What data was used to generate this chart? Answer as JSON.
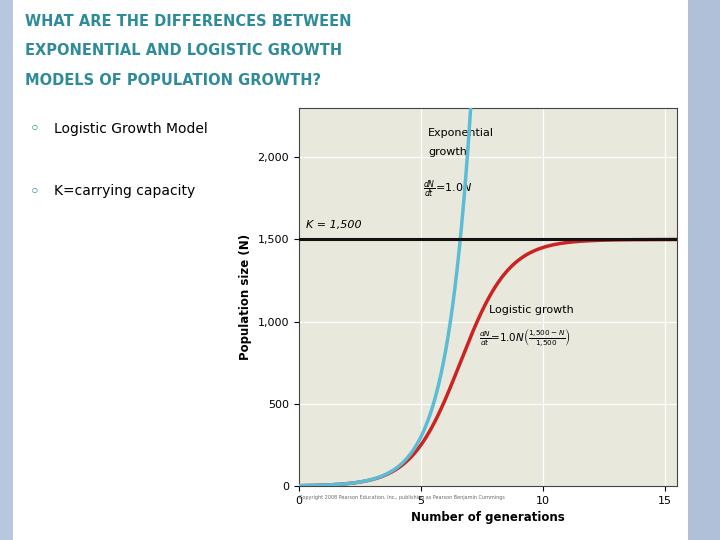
{
  "title_line1": "WHAT ARE THE DIFFERENCES BETWEEN",
  "title_line2": "EXPONENTIAL AND LOGISTIC GROWTH",
  "title_line3": "MODELS OF POPULATION GROWTH?",
  "title_color": "#2E8B9A",
  "bullet1": "Logistic Growth Model",
  "bullet2": "K=carrying capacity",
  "bullet_color": "#2E8B9A",
  "K": 1500,
  "r": 1.0,
  "N0": 2,
  "t_max": 15.5,
  "xlim": [
    0,
    15.5
  ],
  "ylim": [
    0,
    2300
  ],
  "yticks": [
    0,
    500,
    1000,
    1500,
    2000
  ],
  "xticks": [
    0,
    5,
    10,
    15
  ],
  "xlabel": "Number of generations",
  "ylabel": "Population size (N)",
  "exp_color": "#5BBCD6",
  "logistic_color": "#CC2222",
  "K_line_color": "#111111",
  "plot_area_bg": "#E8E8DC",
  "slide_bg": "#FFFFFF",
  "left_border_color": "#B8C8DC",
  "right_border_color": "#B0C0D8",
  "annotation_K": "K = 1,500",
  "copyright": "Copyright 2008 Pearson Education, Inc., publishing as Pearson Benjamin Cummings"
}
